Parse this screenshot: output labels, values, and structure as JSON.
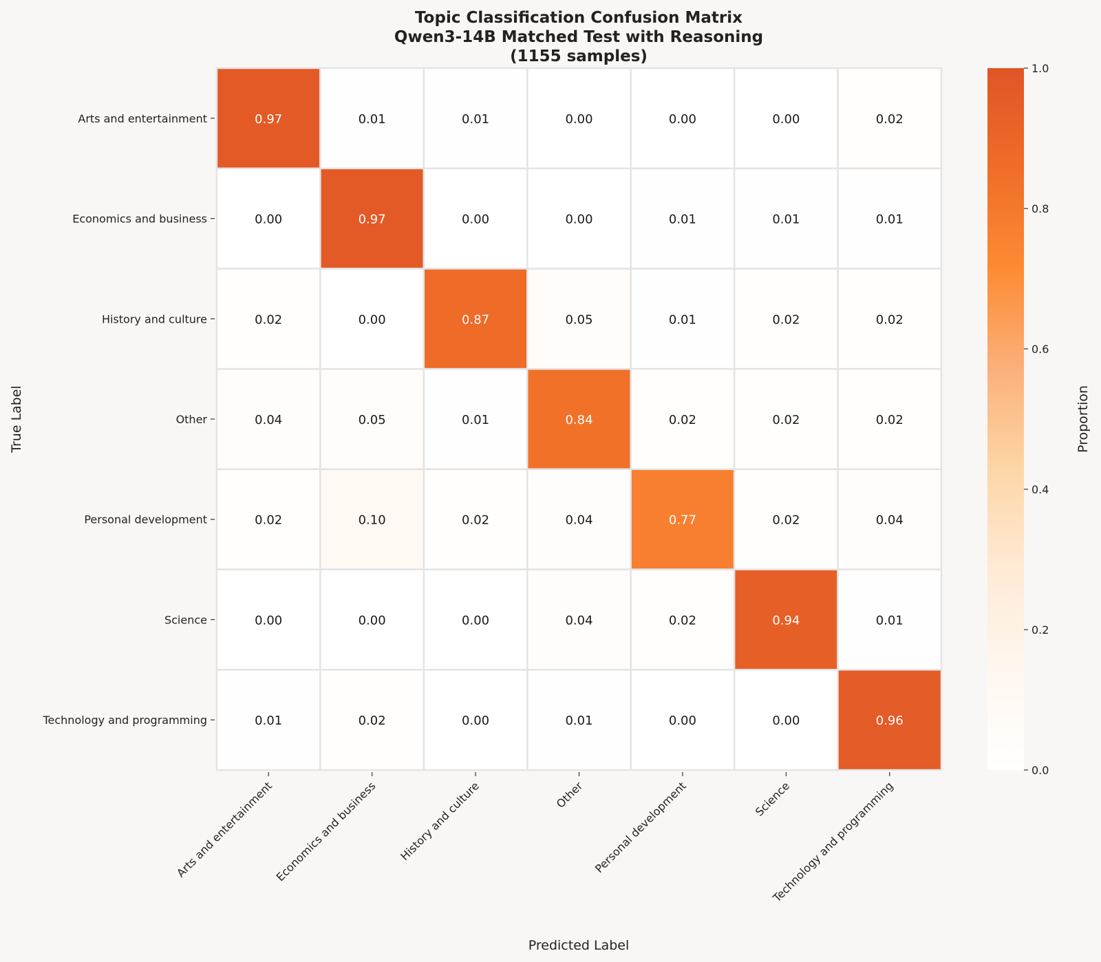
{
  "chart_data": {
    "type": "heatmap",
    "title_lines": [
      "Topic Classification Confusion Matrix",
      "Qwen3-14B Matched Test with Reasoning",
      "(1155 samples)"
    ],
    "xlabel": "Predicted Label",
    "ylabel": "True Label",
    "x_categories": [
      "Arts and entertainment",
      "Economics and business",
      "History and culture",
      "Other",
      "Personal development",
      "Science",
      "Technology and programming"
    ],
    "y_categories": [
      "Arts and entertainment",
      "Economics and business",
      "History and culture",
      "Other",
      "Personal development",
      "Science",
      "Technology and programming"
    ],
    "values": [
      [
        0.97,
        0.01,
        0.01,
        0.0,
        0.0,
        0.0,
        0.02
      ],
      [
        0.0,
        0.97,
        0.0,
        0.0,
        0.01,
        0.01,
        0.01
      ],
      [
        0.02,
        0.0,
        0.87,
        0.05,
        0.01,
        0.02,
        0.02
      ],
      [
        0.04,
        0.05,
        0.01,
        0.84,
        0.02,
        0.02,
        0.02
      ],
      [
        0.02,
        0.1,
        0.02,
        0.04,
        0.77,
        0.02,
        0.04
      ],
      [
        0.0,
        0.0,
        0.0,
        0.04,
        0.02,
        0.94,
        0.01
      ],
      [
        0.01,
        0.02,
        0.0,
        0.01,
        0.0,
        0.0,
        0.96
      ]
    ],
    "colorbar": {
      "label": "Proportion",
      "range": [
        0.0,
        1.0
      ],
      "ticks": [
        "0.0",
        "0.2",
        "0.4",
        "0.6",
        "0.8",
        "1.0"
      ],
      "colors": [
        "#ffffff",
        "#fff7ef",
        "#feead6",
        "#fdd6a6",
        "#fbb07a",
        "#fd8b33",
        "#ef6d28",
        "#e05526"
      ]
    },
    "grid": false,
    "background": "#f8f7f6",
    "cell_border_color": "#e4e4e4"
  }
}
